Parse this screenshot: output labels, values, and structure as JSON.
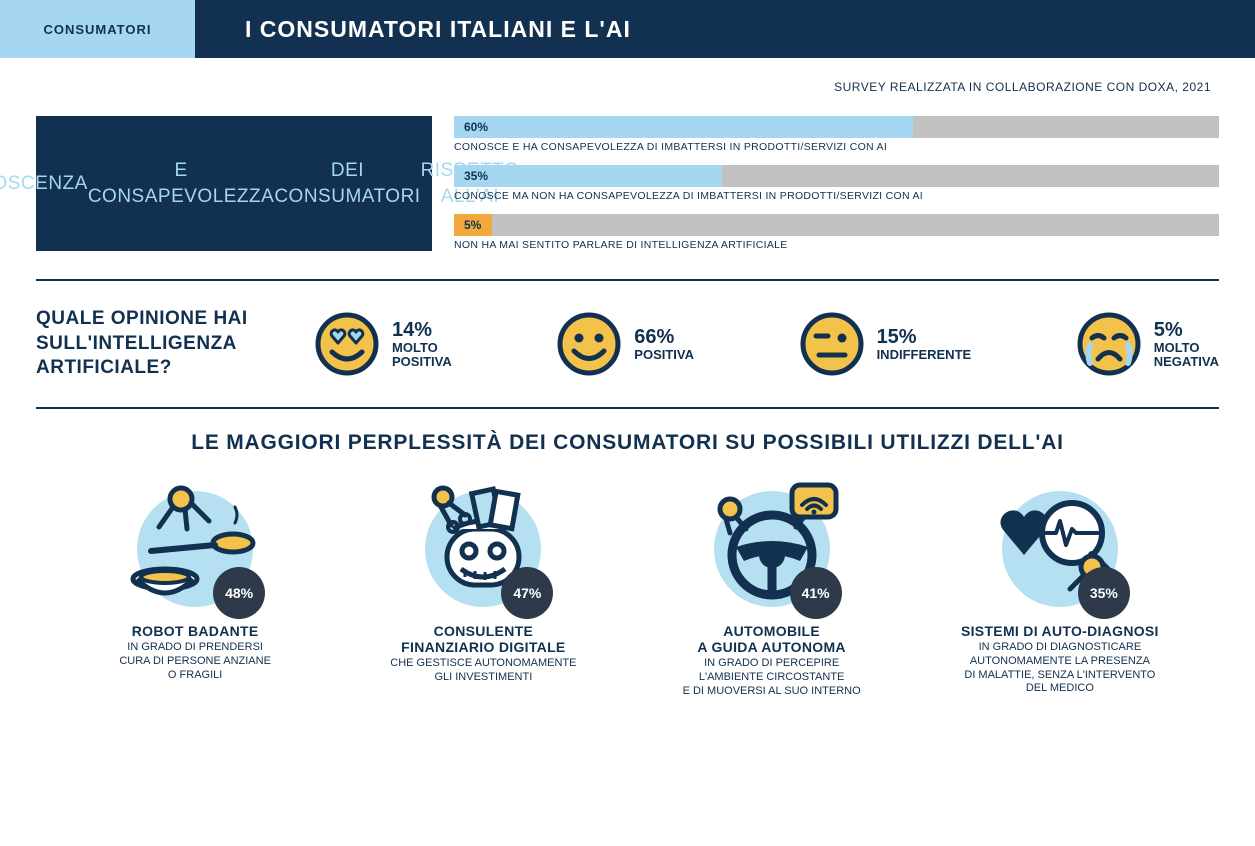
{
  "colors": {
    "navy": "#12304f",
    "light_blue": "#a5d8f0",
    "grey": "#c2c2c2",
    "orange": "#f2a93b",
    "badge_bg": "#2e3a4a",
    "disc_blue": "#b4e0f2",
    "face_fill": "#f2c24b",
    "white": "#ffffff"
  },
  "header": {
    "tag": "CONSUMATORI",
    "title": "I CONSUMATORI ITALIANI E L'AI"
  },
  "survey_note": "SURVEY REALIZZATA IN COLLABORAZIONE CON DOXA, 2021",
  "awareness": {
    "box_text": "CONOSCENZA\nE CONSAPEVOLEZZA\nDEI CONSUMATORI\nRISPETTO ALL'AI",
    "bars": [
      {
        "pct": 60,
        "pct_label": "60%",
        "fill": "#a5d8f0",
        "label": "CONOSCE E HA CONSAPEVOLEZZA DI IMBATTERSI IN PRODOTTI/SERVIZI CON AI"
      },
      {
        "pct": 35,
        "pct_label": "35%",
        "fill": "#a5d8f0",
        "label": "CONOSCE MA NON HA CONSAPEVOLEZZA DI IMBATTERSI IN PRODOTTI/SERVIZI CON AI"
      },
      {
        "pct": 5,
        "pct_label": "5%",
        "fill": "#f2a93b",
        "label": "NON HA MAI SENTITO PARLARE DI INTELLIGENZA ARTIFICIALE"
      }
    ]
  },
  "opinion": {
    "question": "QUALE OPINIONE HAI SULL'INTELLIGENZA ARTIFICIALE?",
    "items": [
      {
        "pct": "14%",
        "label": "MOLTO\nPOSITIVA",
        "face": "hearts"
      },
      {
        "pct": "66%",
        "label": "POSITIVA",
        "face": "smile"
      },
      {
        "pct": "15%",
        "label": "INDIFFERENTE",
        "face": "neutral"
      },
      {
        "pct": "5%",
        "label": "MOLTO\nNEGATIVA",
        "face": "cry"
      }
    ]
  },
  "concerns": {
    "title": "LE MAGGIORI PERPLESSITÀ DEI CONSUMATORI SU POSSIBILI UTILIZZI DELL'AI",
    "items": [
      {
        "pct": "48%",
        "title": "ROBOT BADANTE",
        "desc": "IN GRADO DI PRENDERSI\nCURA DI PERSONE ANZIANE\nO FRAGILI",
        "illus": "robot_care"
      },
      {
        "pct": "47%",
        "title": "CONSULENTE\nFINANZIARIO DIGITALE",
        "desc": "CHE GESTISCE AUTONOMAMENTE\nGLI INVESTIMENTI",
        "illus": "robot_money"
      },
      {
        "pct": "41%",
        "title": "AUTOMOBILE\nA GUIDA AUTONOMA",
        "desc": "IN GRADO DI PERCEPIRE\nL'AMBIENTE CIRCOSTANTE\nE DI MUOVERSI AL SUO INTERNO",
        "illus": "steering"
      },
      {
        "pct": "35%",
        "title": "SISTEMI DI AUTO-DIAGNOSI",
        "desc": "IN GRADO DI DIAGNOSTICARE\nAUTONOMAMENTE LA PRESENZA\nDI MALATTIE, SENZA L'INTERVENTO\nDEL MEDICO",
        "illus": "diagnosis"
      }
    ]
  }
}
